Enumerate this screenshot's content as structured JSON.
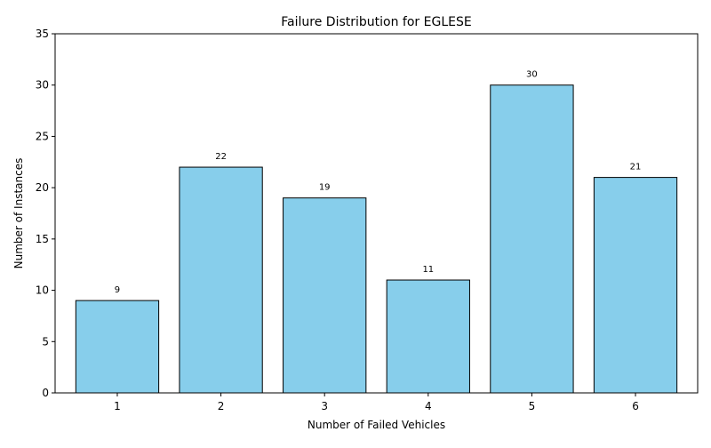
{
  "chart_data": {
    "type": "bar",
    "title": "Failure Distribution for EGLESE",
    "xlabel": "Number of Failed Vehicles",
    "ylabel": "Number of Instances",
    "categories": [
      "1",
      "2",
      "3",
      "4",
      "5",
      "6"
    ],
    "values": [
      9,
      22,
      19,
      11,
      30,
      21
    ],
    "data_labels": [
      "9",
      "22",
      "19",
      "11",
      "30",
      "21"
    ],
    "ylim": [
      0,
      35
    ],
    "yticks": [
      0,
      5,
      10,
      15,
      20,
      25,
      30,
      35
    ],
    "ytick_labels": [
      "0",
      "5",
      "10",
      "15",
      "20",
      "25",
      "30",
      "35"
    ],
    "grid": false,
    "legend": "none",
    "colors": {
      "bar_fill": "#87ceeb",
      "bar_edge": "#000000",
      "axis": "#000000"
    }
  }
}
